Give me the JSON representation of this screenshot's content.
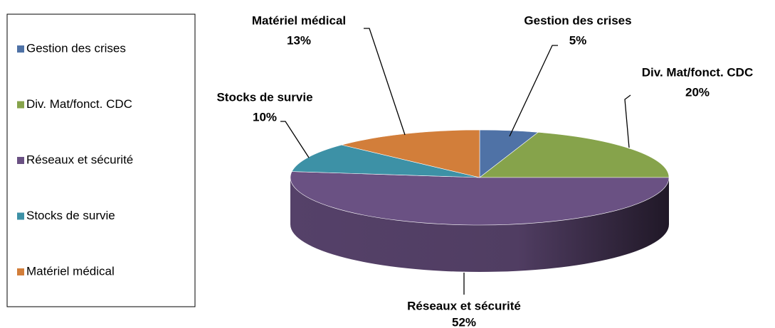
{
  "chart_data": {
    "type": "pie",
    "categories": [
      "Gestion des crises",
      "Div. Mat/fonct. CDC",
      "Réseaux et sécurité",
      "Stocks de survie",
      "Matériel médical"
    ],
    "values": [
      5,
      20,
      52,
      10,
      13
    ],
    "value_labels": [
      "5%",
      "20%",
      "52%",
      "10%",
      "13%"
    ],
    "colors": [
      "#4f72a6",
      "#86a34b",
      "#6a5183",
      "#3d91a6",
      "#d27e3a"
    ],
    "legend": "left"
  }
}
